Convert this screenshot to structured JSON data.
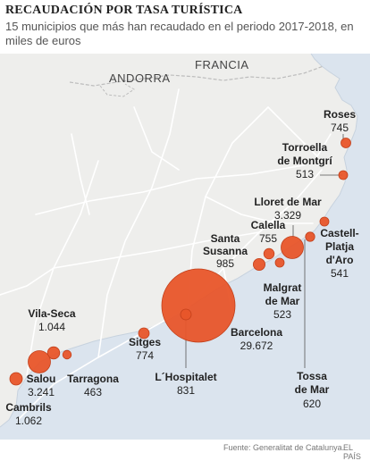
{
  "title": "RECAUDACIÓN POR TASA TURÍSTICA",
  "subtitle": "15 municipios que más han recaudado en el periodo 2017-2018, en miles de euros",
  "map_labels": {
    "andorra": "ANDORRA",
    "francia": "FRANCIA"
  },
  "source": "Fuente: Generalitat de Catalunya.",
  "brand": "EL PAÍS",
  "colors": {
    "bubble": "#e8552a",
    "bubble_edge": "#c2401b",
    "sea": "#dbe4ee",
    "land": "#eeeeec",
    "roads": "#ffffff",
    "border": "#bdbdbd"
  },
  "municipalities": [
    {
      "name": "Roses",
      "value": "745"
    },
    {
      "name": "Torroella de Montgrí",
      "value": "513"
    },
    {
      "name": "Lloret de Mar",
      "value": "3.329"
    },
    {
      "name": "Castell-Platja d'Aro",
      "value": "541"
    },
    {
      "name": "Calella",
      "value": "755"
    },
    {
      "name": "Santa Susanna",
      "value": "985"
    },
    {
      "name": "Malgrat de Mar",
      "value": "523"
    },
    {
      "name": "Tossa de Mar",
      "value": "620"
    },
    {
      "name": "Barcelona",
      "value": "29.672"
    },
    {
      "name": "L´Hospitalet",
      "value": "831"
    },
    {
      "name": "Sitges",
      "value": "774"
    },
    {
      "name": "Vila-Seca",
      "value": "1.044"
    },
    {
      "name": "Tarragona",
      "value": "463"
    },
    {
      "name": "Salou",
      "value": "3.241"
    },
    {
      "name": "Cambrils",
      "value": "1.062"
    }
  ]
}
